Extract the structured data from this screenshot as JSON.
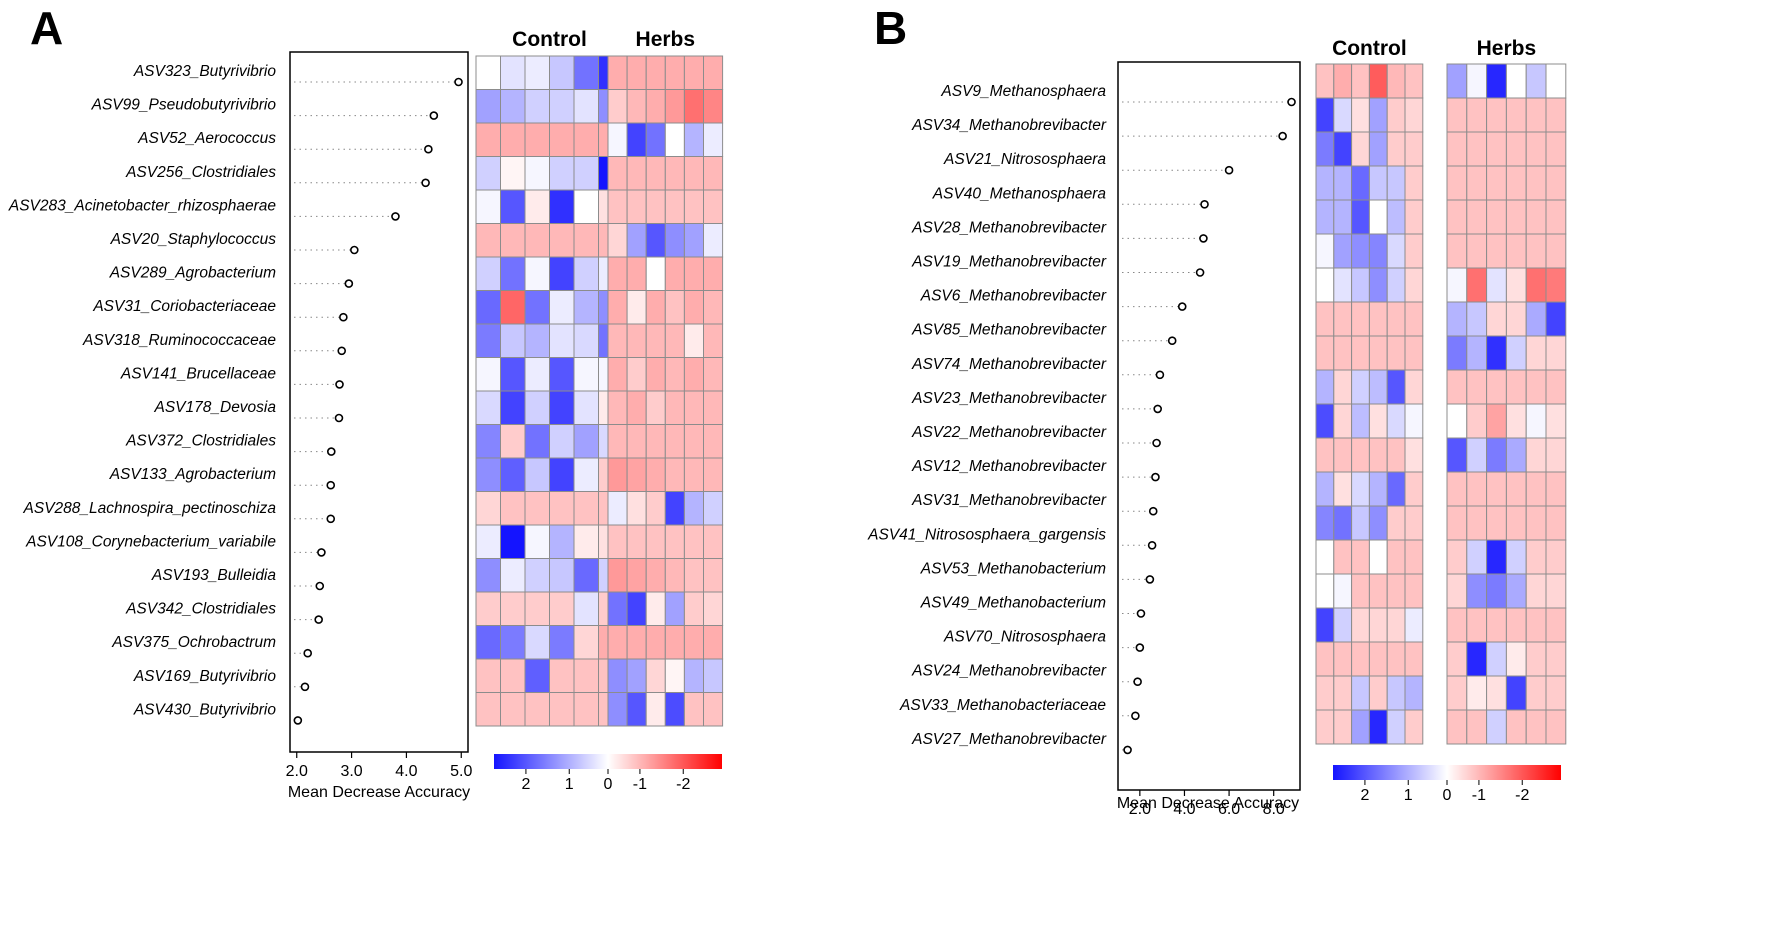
{
  "figure": {
    "colorbar_ticks": [
      "2",
      "1",
      "0",
      "-1",
      "-2"
    ]
  },
  "chart_data": [
    {
      "type": "heatmap",
      "panel_label": "A",
      "title": "",
      "xlabel": "Mean Decrease Accuracy",
      "x_ticks": [
        "2.0",
        "3.0",
        "4.0",
        "5.0"
      ],
      "xlim": [
        1.95,
        5.05
      ],
      "groups": [
        "Control",
        "Herbs"
      ],
      "features": [
        "ASV323_Butyrivibrio",
        "ASV99_Pseudobutyrivibrio",
        "ASV52_Aerococcus",
        "ASV256_Clostridiales",
        "ASV283_Acinetobacter_rhizosphaerae",
        "ASV20_Staphylococcus",
        "ASV289_Agrobacterium",
        "ASV31_Coriobacteriaceae",
        "ASV318_Ruminococcaceae",
        "ASV141_Brucellaceae",
        "ASV178_Devosia",
        "ASV372_Clostridiales",
        "ASV133_Agrobacterium",
        "ASV288_Lachnospira_pectinoschiza",
        "ASV108_Corynebacterium_variabile",
        "ASV193_Bulleidia",
        "ASV342_Clostridiales",
        "ASV375_Ochrobactrum",
        "ASV169_Butyrivibrio",
        "ASV430_Butyrivibrio"
      ],
      "mean_decrease_accuracy": [
        4.95,
        4.5,
        4.4,
        4.35,
        3.8,
        3.05,
        2.95,
        2.85,
        2.82,
        2.78,
        2.77,
        2.63,
        2.62,
        2.62,
        2.45,
        2.42,
        2.4,
        2.2,
        2.15,
        2.02
      ],
      "heatmap_control": [
        [
          0,
          0.3,
          0.2,
          0.6,
          1.5,
          2.2
        ],
        [
          1.0,
          0.8,
          0.5,
          0.5,
          0.3,
          1.2
        ],
        [
          -0.8,
          -0.8,
          -0.8,
          -0.8,
          -0.8,
          -0.8
        ],
        [
          0.5,
          -0.1,
          0.1,
          0.5,
          0.5,
          2.5
        ],
        [
          0.1,
          1.8,
          -0.2,
          2.2,
          0.0,
          -0.3
        ],
        [
          -0.7,
          -0.7,
          -0.7,
          -0.7,
          -0.7,
          -0.7
        ],
        [
          0.5,
          1.5,
          0.1,
          2.0,
          0.5,
          0.2
        ],
        [
          1.6,
          -1.5,
          1.5,
          0.2,
          0.8,
          1.2
        ],
        [
          1.4,
          0.6,
          0.8,
          0.3,
          0.4,
          1.5
        ],
        [
          0.1,
          1.8,
          0.2,
          1.8,
          0.1,
          0.1
        ],
        [
          0.4,
          2.0,
          0.5,
          2.0,
          0.3,
          -0.2
        ],
        [
          1.3,
          -0.5,
          1.5,
          0.5,
          1.0,
          0.4
        ],
        [
          1.2,
          1.7,
          0.6,
          2.0,
          0.2,
          -0.5
        ],
        [
          -0.4,
          -0.6,
          -0.6,
          -0.6,
          -0.6,
          -0.6
        ],
        [
          0.2,
          2.5,
          0.1,
          0.8,
          -0.2,
          -0.3
        ],
        [
          1.2,
          0.2,
          0.5,
          0.6,
          1.6,
          0.5
        ],
        [
          -0.5,
          -0.5,
          -0.5,
          -0.5,
          0.3,
          -0.5
        ],
        [
          1.6,
          1.4,
          0.4,
          1.4,
          -0.4,
          -0.8
        ],
        [
          -0.6,
          -0.6,
          1.7,
          -0.6,
          -0.6,
          -0.6
        ],
        [
          -0.6,
          -0.6,
          -0.6,
          -0.6,
          -0.6,
          -0.6
        ]
      ],
      "heatmap_herbs": [
        [
          -0.8,
          -0.8,
          -0.8,
          -0.8,
          -0.8,
          -0.8
        ],
        [
          -0.5,
          -0.7,
          -0.8,
          -1.0,
          -1.4,
          -1.2
        ],
        [
          0.1,
          2.0,
          1.5,
          0.0,
          0.8,
          0.2
        ],
        [
          -0.7,
          -0.7,
          -0.7,
          -0.7,
          -0.7,
          -0.7
        ],
        [
          -0.6,
          -0.6,
          -0.6,
          -0.6,
          -0.6,
          -0.6
        ],
        [
          -0.4,
          1.0,
          1.8,
          1.2,
          1.0,
          0.2
        ],
        [
          -0.8,
          -0.8,
          0.0,
          -0.8,
          -0.8,
          -0.8
        ],
        [
          -0.8,
          -0.2,
          -0.8,
          -0.6,
          -0.8,
          -0.7
        ],
        [
          -0.7,
          -0.7,
          -0.7,
          -0.7,
          -0.2,
          -0.7
        ],
        [
          -0.8,
          -0.5,
          -0.8,
          -0.7,
          -0.8,
          -0.7
        ],
        [
          -0.7,
          -0.8,
          -0.5,
          -0.7,
          -0.7,
          -0.7
        ],
        [
          -0.7,
          -0.7,
          -0.7,
          -0.7,
          -0.7,
          -0.7
        ],
        [
          -1.0,
          -0.9,
          -0.8,
          -0.7,
          -0.7,
          -0.7
        ],
        [
          0.2,
          -0.3,
          -0.5,
          2.0,
          0.8,
          0.5
        ],
        [
          -0.6,
          -0.6,
          -0.6,
          -0.6,
          -0.6,
          -0.6
        ],
        [
          -1.0,
          -0.9,
          -0.8,
          -0.7,
          -0.6,
          -0.6
        ],
        [
          1.5,
          2.0,
          -0.2,
          1.0,
          -0.5,
          -0.4
        ],
        [
          -0.8,
          -0.8,
          -0.8,
          -0.8,
          -0.8,
          -0.8
        ],
        [
          1.2,
          1.0,
          -0.4,
          -0.1,
          0.8,
          0.6
        ],
        [
          1.2,
          1.8,
          -0.2,
          1.9,
          -0.6,
          -0.6
        ]
      ]
    },
    {
      "type": "heatmap",
      "panel_label": "B",
      "title": "",
      "xlabel": "Mean Decrease Accuracy",
      "x_ticks": [
        "2.0",
        "4.0",
        "6.0",
        "8.0"
      ],
      "xlim": [
        1.2,
        9.0
      ],
      "groups": [
        "Control",
        "Herbs"
      ],
      "features": [
        "ASV9_Methanosphaera",
        "ASV34_Methanobrevibacter",
        "ASV21_Nitrososphaera",
        "ASV40_Methanosphaera",
        "ASV28_Methanobrevibacter",
        "ASV19_Methanobrevibacter",
        "ASV6_Methanobrevibacter",
        "ASV85_Methanobrevibacter",
        "ASV74_Methanobrevibacter",
        "ASV23_Methanobrevibacter",
        "ASV22_Methanobrevibacter",
        "ASV12_Methanobrevibacter",
        "ASV31_Methanobrevibacter",
        "ASV41_Nitrososphaera_gargensis",
        "ASV53_Methanobacterium",
        "ASV49_Methanobacterium",
        "ASV70_Nitrososphaera",
        "ASV24_Methanobrevibacter",
        "ASV33_Methanobacteriaceae",
        "ASV27_Methanobrevibacter"
      ],
      "mean_decrease_accuracy": [
        8.8,
        8.4,
        6.0,
        4.9,
        4.85,
        4.7,
        3.9,
        3.45,
        2.9,
        2.8,
        2.75,
        2.7,
        2.6,
        2.55,
        2.45,
        2.05,
        2.0,
        1.9,
        1.8,
        1.45
      ],
      "heatmap_control": [
        [
          -0.6,
          -0.8,
          -0.6,
          -1.6,
          -0.7,
          -0.6
        ],
        [
          2.0,
          0.4,
          -0.3,
          1.0,
          -0.5,
          -0.4
        ],
        [
          1.4,
          2.0,
          -0.4,
          1.0,
          -0.5,
          -0.5
        ],
        [
          0.8,
          0.8,
          1.6,
          0.6,
          0.6,
          -0.5
        ],
        [
          0.8,
          0.8,
          1.8,
          0.0,
          0.7,
          -0.5
        ],
        [
          0.1,
          1.0,
          1.2,
          1.3,
          0.4,
          -0.5
        ],
        [
          0.0,
          0.3,
          0.6,
          1.2,
          0.5,
          -0.4
        ],
        [
          -0.6,
          -0.6,
          -0.6,
          -0.6,
          -0.6,
          -0.6
        ],
        [
          -0.6,
          -0.6,
          -0.6,
          -0.6,
          -0.6,
          -0.6
        ],
        [
          0.8,
          -0.4,
          0.5,
          0.7,
          1.8,
          -0.4
        ],
        [
          1.9,
          -0.4,
          0.7,
          -0.3,
          0.4,
          0.1
        ],
        [
          -0.6,
          -0.6,
          -0.6,
          -0.6,
          -0.6,
          -0.3
        ],
        [
          0.8,
          -0.3,
          0.4,
          0.8,
          1.6,
          -0.5
        ],
        [
          1.3,
          1.5,
          0.6,
          1.2,
          -0.5,
          -0.5
        ],
        [
          0.0,
          -0.6,
          -0.6,
          0.0,
          -0.6,
          -0.6
        ],
        [
          0.0,
          0.1,
          -0.6,
          -0.6,
          -0.6,
          -0.6
        ],
        [
          2.0,
          0.5,
          -0.4,
          -0.4,
          -0.4,
          0.2
        ],
        [
          -0.6,
          -0.6,
          -0.6,
          -0.6,
          -0.6,
          -0.6
        ],
        [
          -0.5,
          -0.5,
          0.6,
          -0.5,
          0.6,
          0.8
        ],
        [
          -0.5,
          -0.5,
          1.0,
          2.3,
          0.5,
          -0.5
        ]
      ],
      "heatmap_herbs": [
        [
          1.0,
          0.1,
          2.3,
          0.0,
          0.6,
          0.0
        ],
        [
          -0.6,
          -0.6,
          -0.6,
          -0.6,
          -0.6,
          -0.6
        ],
        [
          -0.6,
          -0.6,
          -0.6,
          -0.6,
          -0.6,
          -0.6
        ],
        [
          -0.6,
          -0.6,
          -0.6,
          -0.6,
          -0.6,
          -0.6
        ],
        [
          -0.6,
          -0.6,
          -0.6,
          -0.6,
          -0.6,
          -0.6
        ],
        [
          -0.6,
          -0.6,
          -0.6,
          -0.6,
          -0.6,
          -0.6
        ],
        [
          0.1,
          -1.4,
          0.3,
          -0.3,
          -1.4,
          -1.3
        ],
        [
          0.8,
          0.6,
          -0.4,
          -0.4,
          0.9,
          2.0
        ],
        [
          1.4,
          0.8,
          2.2,
          0.5,
          -0.4,
          -0.4
        ],
        [
          -0.6,
          -0.6,
          -0.6,
          -0.6,
          -0.6,
          -0.6
        ],
        [
          0.0,
          -0.5,
          -0.9,
          -0.3,
          0.1,
          -0.3
        ],
        [
          1.8,
          0.5,
          1.4,
          0.9,
          -0.4,
          -0.4
        ],
        [
          -0.6,
          -0.6,
          -0.6,
          -0.6,
          -0.6,
          -0.6
        ],
        [
          -0.6,
          -0.6,
          -0.6,
          -0.6,
          -0.6,
          -0.6
        ],
        [
          -0.5,
          0.5,
          2.3,
          0.5,
          -0.5,
          -0.5
        ],
        [
          -0.4,
          1.2,
          1.4,
          0.9,
          -0.4,
          -0.4
        ],
        [
          -0.6,
          -0.6,
          -0.6,
          -0.6,
          -0.6,
          -0.6
        ],
        [
          -0.5,
          2.3,
          0.5,
          -0.2,
          -0.5,
          -0.5
        ],
        [
          -0.5,
          -0.2,
          -0.3,
          2.0,
          -0.5,
          -0.5
        ],
        [
          -0.6,
          -0.6,
          0.5,
          -0.6,
          -0.6,
          -0.6
        ]
      ]
    }
  ]
}
